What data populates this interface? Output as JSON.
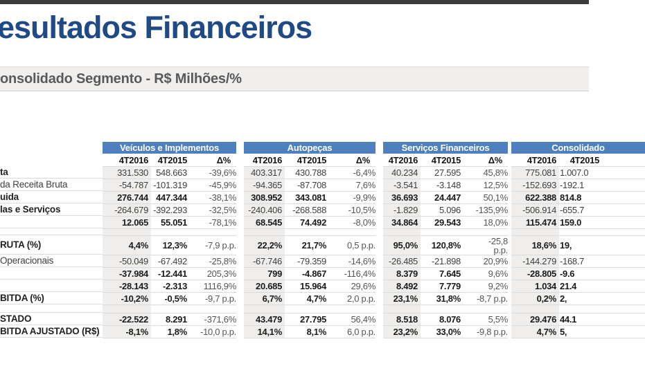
{
  "slide": {
    "title": "esultados Financeiros",
    "subtitle": "onsolidado Segmento - R$ Milhões/%",
    "accent_color": "#4d80bc",
    "title_color": "#1f4a85"
  },
  "table": {
    "groups": [
      {
        "name": "Veículos e Implementos",
        "cols": [
          "4T2016",
          "4T2015",
          "Δ%"
        ]
      },
      {
        "name": "Autopeças",
        "cols": [
          "4T2016",
          "4T2015",
          "Δ%"
        ]
      },
      {
        "name": "Serviços Financeiros",
        "cols": [
          "4T2016",
          "4T2015",
          "Δ%"
        ]
      },
      {
        "name": "Consolidado",
        "cols": [
          "4T2016",
          "4T2015",
          ""
        ]
      }
    ],
    "rows": [
      {
        "label": "ta",
        "lb": true,
        "vb": false,
        "cells": [
          [
            "331.530",
            "548.663",
            "-39,6%"
          ],
          [
            "403.317",
            "430.788",
            "-6,4%"
          ],
          [
            "40.234",
            "27.595",
            "45,8%"
          ],
          [
            "775.081",
            "1.007.0"
          ]
        ]
      },
      {
        "label": "da Receita Bruta",
        "lb": false,
        "vb": false,
        "cells": [
          [
            "-54.787",
            "-101.319",
            "-45,9%"
          ],
          [
            "-94.365",
            "-87.708",
            "7,6%"
          ],
          [
            "-3.541",
            "-3.148",
            "12,5%"
          ],
          [
            "-152.693",
            "-192.1"
          ]
        ]
      },
      {
        "label": "uida",
        "lb": true,
        "vb": true,
        "cells": [
          [
            "276.744",
            "447.344",
            "-38,1%"
          ],
          [
            "308.952",
            "343.081",
            "-9,9%"
          ],
          [
            "36.693",
            "24.447",
            "50,1%"
          ],
          [
            "622.388",
            "814.8"
          ]
        ]
      },
      {
        "label": "las e Serviços",
        "lb": true,
        "vb": false,
        "cells": [
          [
            "-264.679",
            "-392.293",
            "-32,5%"
          ],
          [
            "-240.406",
            "-268.588",
            "-10,5%"
          ],
          [
            "-1.829",
            "5.096",
            "-135,9%"
          ],
          [
            "-506.914",
            "-655.7"
          ]
        ]
      },
      {
        "label": "",
        "lb": false,
        "vb": true,
        "cells": [
          [
            "12.065",
            "55.051",
            "-78,1%"
          ],
          [
            "68.545",
            "74.492",
            "-8,0%"
          ],
          [
            "34.864",
            "29.543",
            "18,0%"
          ],
          [
            "115.474",
            "159.0"
          ]
        ]
      },
      {
        "spacer": true,
        "h": "sp"
      },
      {
        "label": "RUTA (%)",
        "lb": true,
        "vb": true,
        "h": "tall",
        "cells": [
          [
            "4,4%",
            "12,3%",
            "-7,9 p.p."
          ],
          [
            "22,2%",
            "21,7%",
            "0,5 p.p."
          ],
          [
            "95,0%",
            "120,8%",
            "-25,8\np.p."
          ],
          [
            "18,6%",
            "19,"
          ]
        ]
      },
      {
        "label": "Operacionais",
        "lb": false,
        "vb": false,
        "cells": [
          [
            "-50.049",
            "-67.492",
            "-25,8%"
          ],
          [
            "-67.746",
            "-79.359",
            "-14,6%"
          ],
          [
            "-26.485",
            "-21.898",
            "20,9%"
          ],
          [
            "-144.279",
            "-168.7"
          ]
        ]
      },
      {
        "label": "",
        "lb": false,
        "vb": true,
        "cells": [
          [
            "-37.984",
            "-12.441",
            "205,3%"
          ],
          [
            "799",
            "-4.867",
            "-116,4%"
          ],
          [
            "8.379",
            "7.645",
            "9,6%"
          ],
          [
            "-28.805",
            "-9.6"
          ]
        ]
      },
      {
        "label": "",
        "lb": false,
        "vb": true,
        "cells": [
          [
            "-28.143",
            "-2.313",
            "1116,9%"
          ],
          [
            "20.685",
            "15.964",
            "29,6%"
          ],
          [
            "8.492",
            "7.779",
            "9,2%"
          ],
          [
            "1.034",
            "21.4"
          ]
        ]
      },
      {
        "label": "BITDA (%)",
        "lb": true,
        "vb": true,
        "cells": [
          [
            "-10,2%",
            "-0,5%",
            "-9,7 p.p."
          ],
          [
            "6,7%",
            "4,7%",
            "2,0 p.p."
          ],
          [
            "23,1%",
            "31,8%",
            "-8,7 p.p."
          ],
          [
            "0,2%",
            "2,"
          ]
        ]
      },
      {
        "spacer": true,
        "h": "sp2"
      },
      {
        "label": "STADO",
        "lb": true,
        "vb": true,
        "cells": [
          [
            "-22.522",
            "8.291",
            "-371,6%"
          ],
          [
            "43.479",
            "27.795",
            "56,4%"
          ],
          [
            "8.518",
            "8.076",
            "5,5%"
          ],
          [
            "29.476",
            "44.1"
          ]
        ]
      },
      {
        "label": "BITDA AJUSTADO (R$)",
        "lb": true,
        "vb": true,
        "cells": [
          [
            "-8,1%",
            "1,8%",
            "-10,0 p.p."
          ],
          [
            "14,1%",
            "8,1%",
            "6,0 p.p."
          ],
          [
            "23,2%",
            "33,0%",
            "-9,8 p.p."
          ],
          [
            "4,7%",
            "5,"
          ]
        ]
      }
    ]
  }
}
